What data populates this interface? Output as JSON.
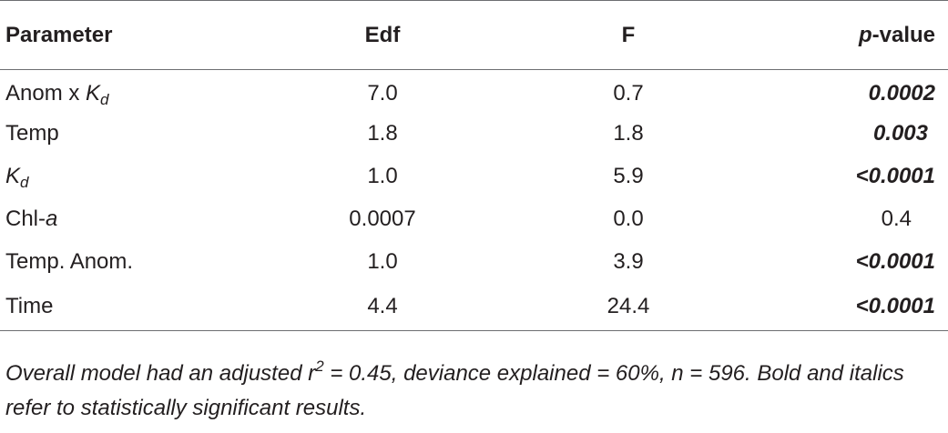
{
  "table": {
    "headers": {
      "parameter": "Parameter",
      "edf": "Edf",
      "f": "F",
      "p_italic": "p",
      "p_rest": "-value"
    },
    "rows": [
      {
        "param_main": "Anom x ",
        "param_ital": "K",
        "param_sub": "d",
        "edf": "7.0",
        "f": "0.7",
        "p": "0.0002",
        "significant": true
      },
      {
        "param_main": "Temp",
        "param_ital": "",
        "param_sub": "",
        "edf": "1.8",
        "f": "1.8",
        "p": "0.003",
        "significant": true
      },
      {
        "param_main": "",
        "param_ital": "K",
        "param_sub": "d",
        "edf": "1.0",
        "f": "5.9",
        "p": "<0.0001",
        "significant": true
      },
      {
        "param_main": "Chl-",
        "param_ital": "a",
        "param_sub": "",
        "edf": "0.0007",
        "f": "0.0",
        "p": "0.4",
        "significant": false
      },
      {
        "param_main": "Temp. Anom.",
        "param_ital": "",
        "param_sub": "",
        "edf": "1.0",
        "f": "3.9",
        "p": "<0.0001",
        "significant": true
      },
      {
        "param_main": "Time",
        "param_ital": "",
        "param_sub": "",
        "edf": "4.4",
        "f": "24.4",
        "p": "<0.0001",
        "significant": true
      }
    ]
  },
  "footnote": {
    "part1": "Overall model had an adjusted r",
    "sup": "2",
    "part2": " = 0.45, deviance explained = 60%, n = 596. Bold and italics refer to statistically significant results."
  }
}
